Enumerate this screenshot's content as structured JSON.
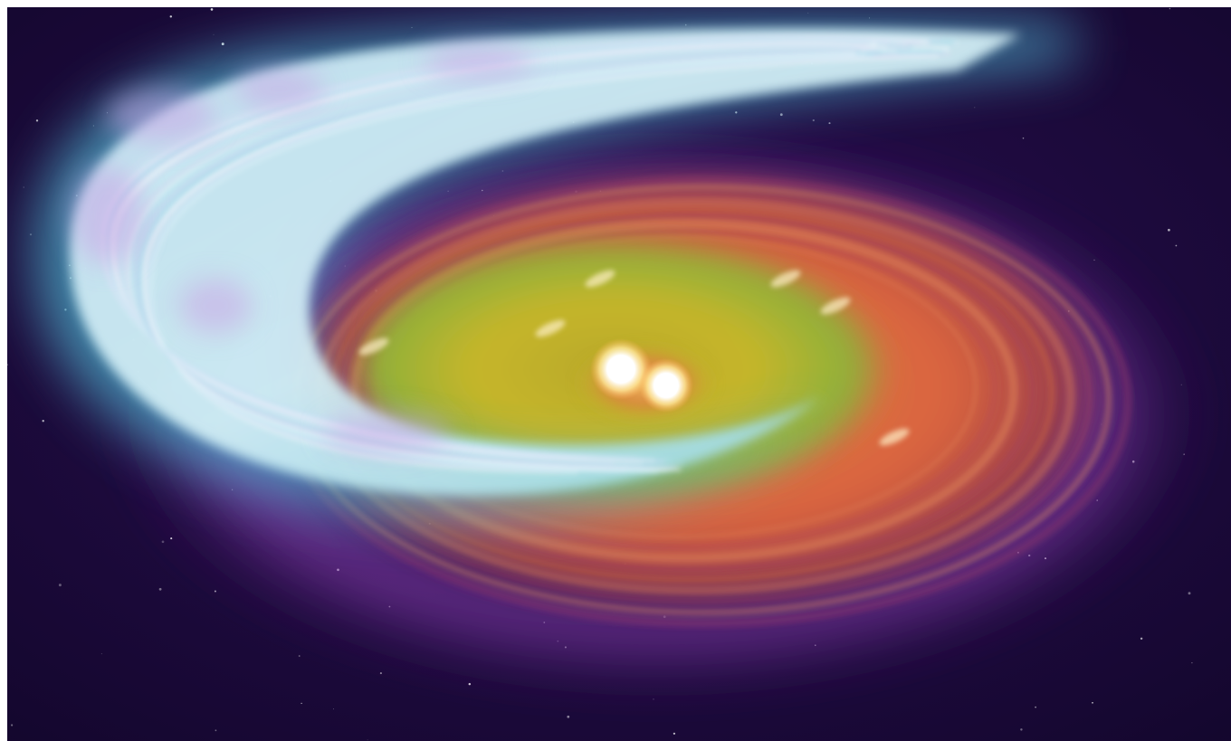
{
  "image": {
    "subject": "spiral-disk-with-two-central-stars",
    "palette": {
      "space": "#1c0a3e",
      "space_deep": "#12062b",
      "outer_arm": "#d8f2f8",
      "outer_arm_glow": "#4fb3cf",
      "lavender_haze": "#c9a6e6",
      "red_disk": "#d9643e",
      "red_disk_dark": "#a2424a",
      "purple_rim": "#8a3fb0",
      "yellow_inner": "#c6b62a",
      "green_inner": "#8fb03a",
      "star_core": "#ffffff",
      "star_halo": "#ffe89a"
    },
    "stars_visible": 2
  }
}
